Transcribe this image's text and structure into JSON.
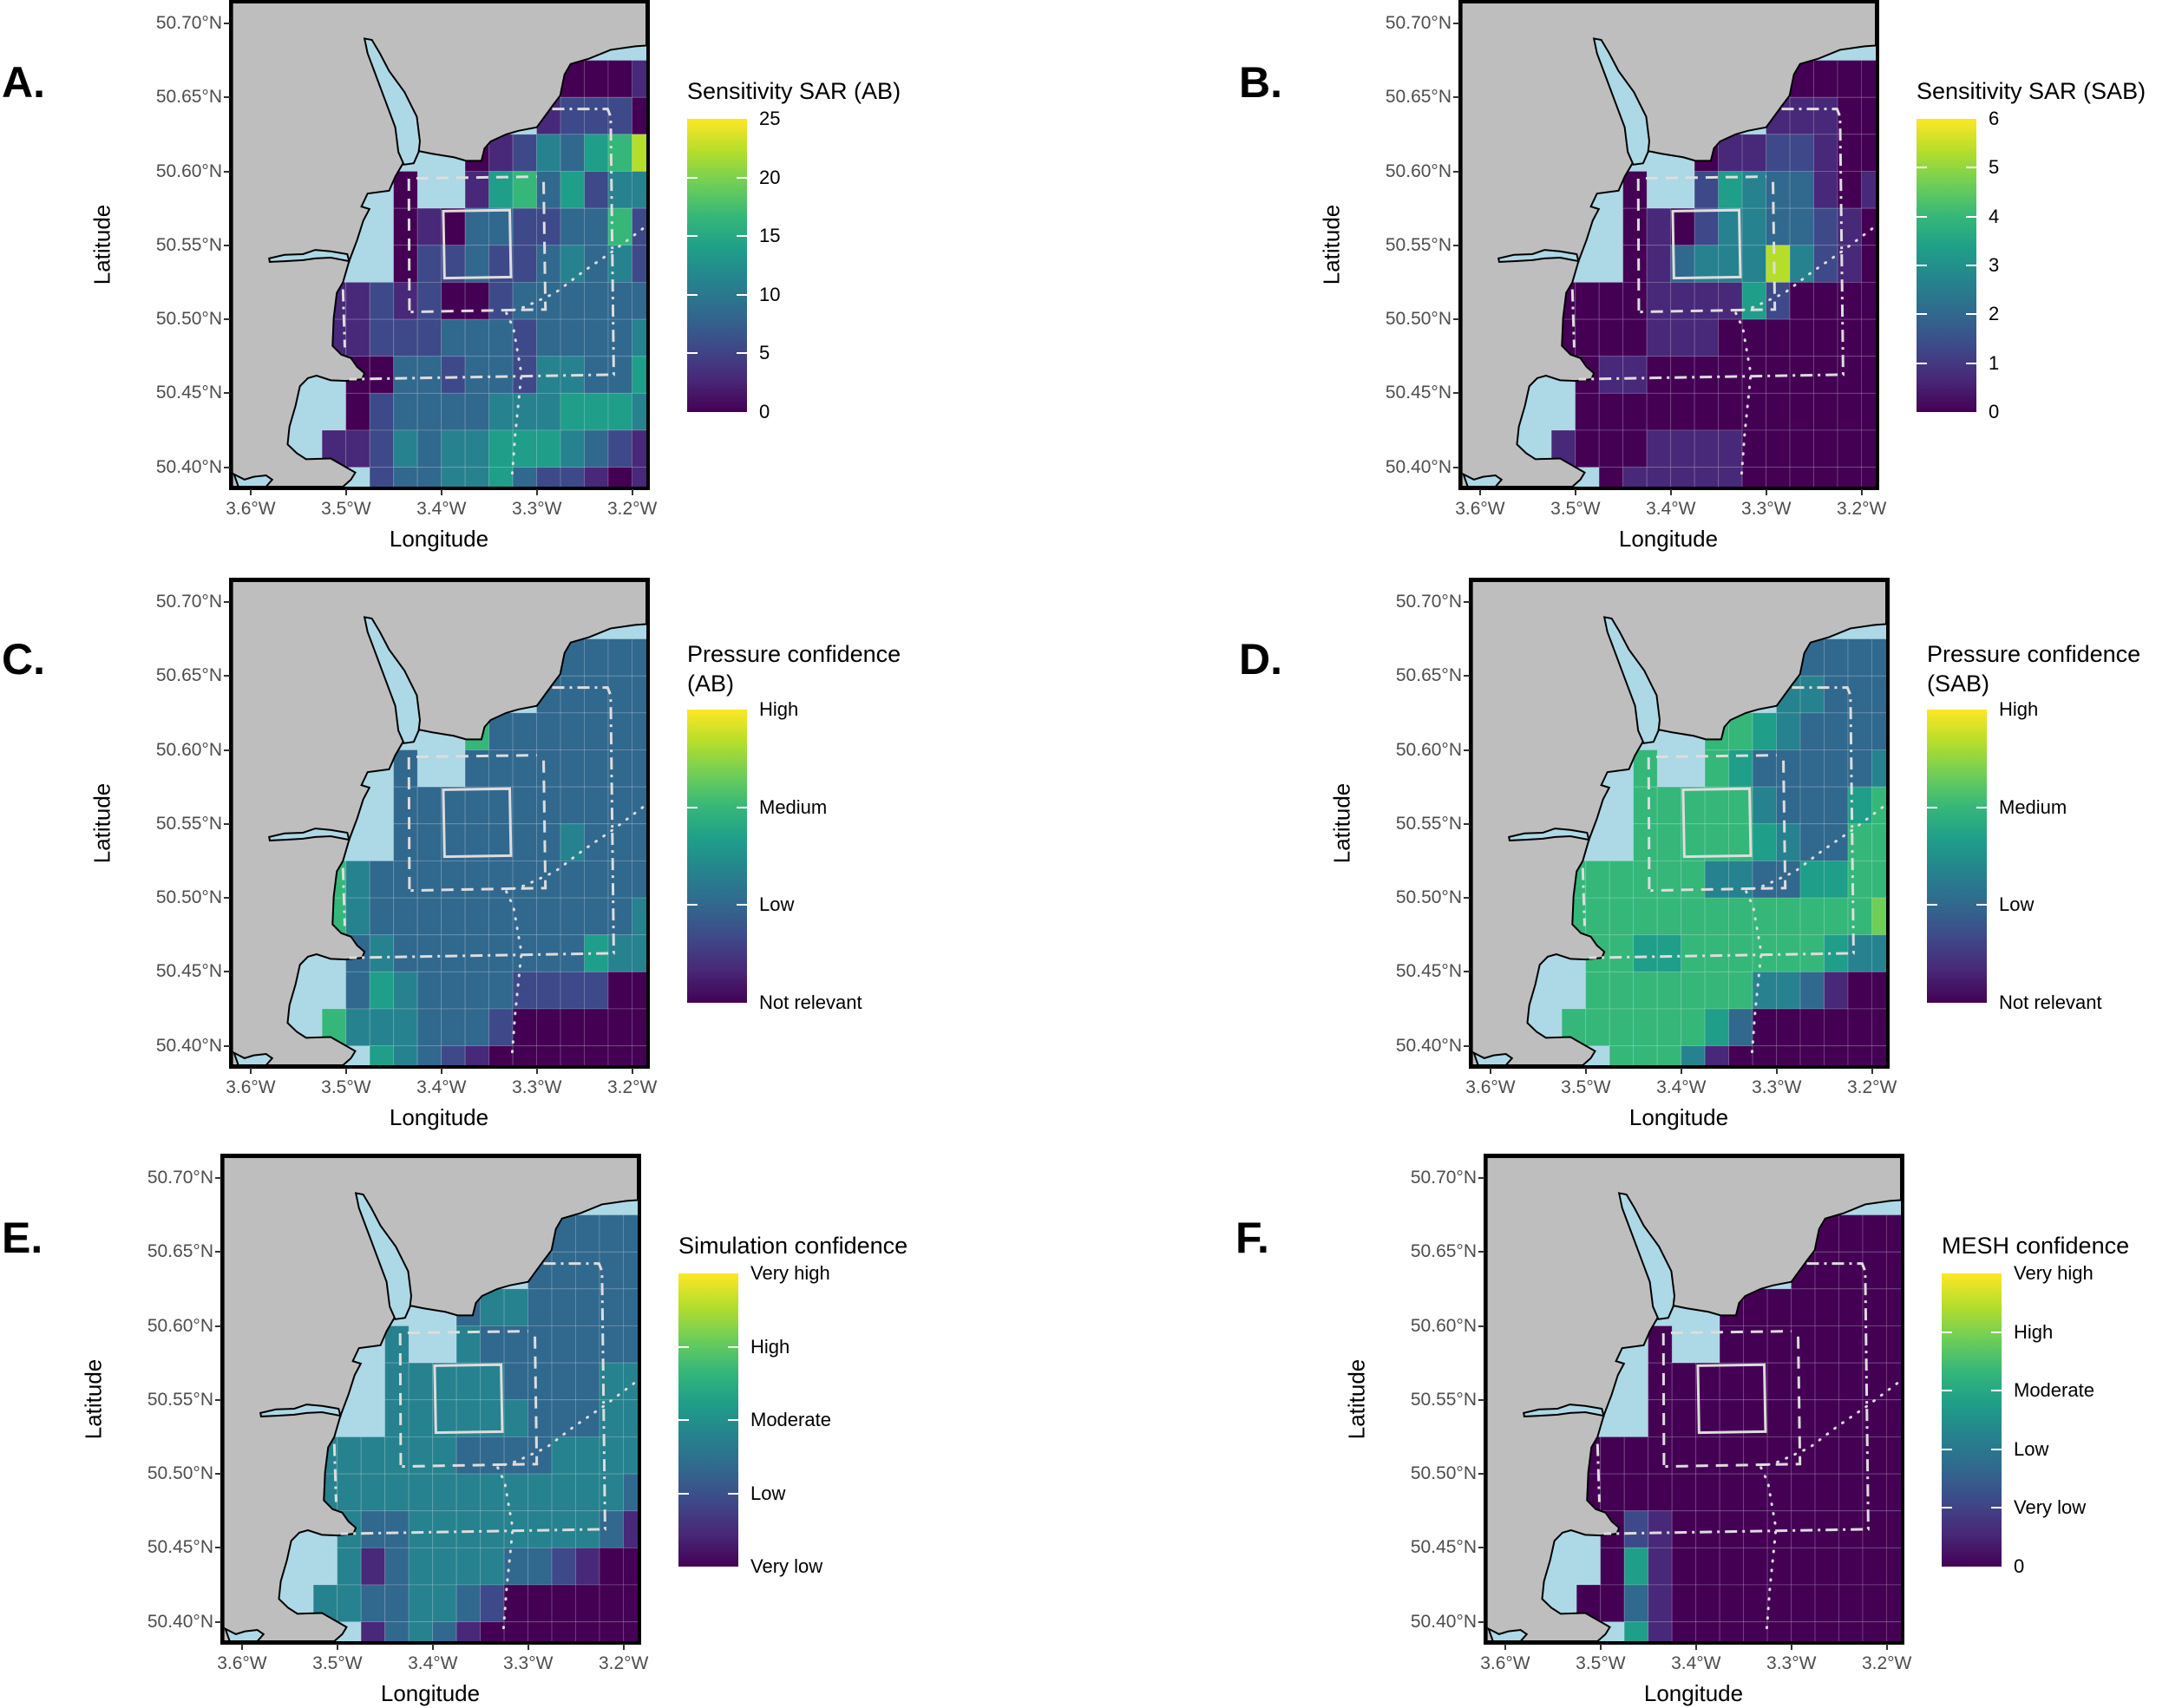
{
  "axes": {
    "x_label": "Longitude",
    "y_label": "Latitude",
    "x_ticks": [
      {
        "value": -3.6,
        "label": "3.6°W"
      },
      {
        "value": -3.5,
        "label": "3.5°W"
      },
      {
        "value": -3.4,
        "label": "3.4°W"
      },
      {
        "value": -3.3,
        "label": "3.3°W"
      },
      {
        "value": -3.2,
        "label": "3.2°W"
      }
    ],
    "y_ticks": [
      {
        "value": 50.7,
        "label": "50.70°N"
      },
      {
        "value": 50.65,
        "label": "50.65°N"
      },
      {
        "value": 50.6,
        "label": "50.60°N"
      },
      {
        "value": 50.55,
        "label": "50.55°N"
      },
      {
        "value": 50.5,
        "label": "50.50°N"
      },
      {
        "value": 50.45,
        "label": "50.45°N"
      },
      {
        "value": 50.4,
        "label": "50.40°N"
      }
    ]
  },
  "colors": {
    "land": "#bebebe",
    "sea": "#add8e6",
    "overlay": "#dddddd",
    "viridis": [
      "#440154",
      "#482878",
      "#3e4989",
      "#31688e",
      "#26828e",
      "#1f9e89",
      "#35b779",
      "#6ece58",
      "#b5de2b",
      "#fde725"
    ]
  },
  "grid_info": {
    "cell_size_deg": 0.025,
    "first_col_lon": -3.525,
    "first_row_top_lat": 50.675,
    "level_scale": "0-9 fraction of colour scale, '.' = no cell"
  },
  "panels": [
    {
      "letter": "A.",
      "legend": {
        "title": [
          "Sensitivity SAR (AB)"
        ],
        "range": [
          0,
          25
        ],
        "ticks": [
          {
            "value": 0,
            "label": "0"
          },
          {
            "value": 5,
            "label": "5"
          },
          {
            "value": 10,
            "label": "10"
          },
          {
            "value": 15,
            "label": "15"
          },
          {
            "value": 20,
            "label": "20"
          },
          {
            "value": 25,
            "label": "25"
          }
        ]
      },
      "grid": [
        "..........0001",
        ".........12220",
        "......01243568",
        "...0..15635244",
        "...01033223362",
        "...02232234342",
        "11212002333333",
        "11222333233334",
        ".0033233244335",
        ".0233334445554",
        "11243445554321",
        "..233445322101"
      ]
    },
    {
      "letter": "B.",
      "legend": {
        "title": [
          "Sensitivity SAR (SAB)"
        ],
        "range": [
          0,
          6
        ],
        "ticks": [
          {
            "value": 0,
            "label": "0"
          },
          {
            "value": 1,
            "label": "1"
          },
          {
            "value": 2,
            "label": "2"
          },
          {
            "value": 3,
            "label": "3"
          },
          {
            "value": 4,
            "label": "4"
          },
          {
            "value": 5,
            "label": "5"
          },
          {
            "value": 6,
            "label": "6"
          }
        ]
      },
      "grid": [
        "..........0000",
        ".........11100",
        "......01122100",
        "...0..25433101",
        "...01024433210",
        "...01344484210",
        "00001111520000",
        "00001110000000",
        ".0110000000000",
        ".0000000000000",
        "10001111000000",
        "..011111000000"
      ]
    },
    {
      "letter": "C.",
      "legend": {
        "title": [
          "Pressure confidence",
          "(AB)"
        ],
        "range": [
          0,
          3
        ],
        "ticks": [
          {
            "value": 0,
            "label": "Not relevant"
          },
          {
            "value": 1,
            "label": "Low"
          },
          {
            "value": 2,
            "label": "Medium"
          },
          {
            "value": 3,
            "label": "High"
          }
        ]
      },
      "grid": [
        "..........3333",
        ".........33333",
        "......63333333",
        "...3..33333333",
        "...33333333333",
        "...33333334333",
        "64333333333333",
        "64333333333334",
        ".3433333333544",
        ".3543333222200",
        "64443332000000",
        "..543210000000"
      ]
    },
    {
      "letter": "D.",
      "legend": {
        "title": [
          "Pressure confidence",
          "(SAB)"
        ],
        "range": [
          0,
          3
        ],
        "ticks": [
          {
            "value": 0,
            "label": "Not relevant"
          },
          {
            "value": 1,
            "label": "Low"
          },
          {
            "value": 2,
            "label": "Medium"
          },
          {
            "value": 3,
            "label": "High"
          }
        ]
      },
      "grid": [
        "..........3333",
        ".........44333",
        "......66543333",
        "...6..65333334",
        "...66666433356",
        "...66666543366",
        "66666644335566",
        "66666666666667",
        ".6655666666544",
        ".6666666443100",
        "66666653000000",
        "..666410000000"
      ]
    },
    {
      "letter": "E.",
      "legend": {
        "title": [
          "Simulation confidence"
        ],
        "range": [
          0,
          4
        ],
        "ticks": [
          {
            "value": 0,
            "label": "Very low"
          },
          {
            "value": 1,
            "label": "Low"
          },
          {
            "value": 2,
            "label": "Moderate"
          },
          {
            "value": 3,
            "label": "High"
          },
          {
            "value": 4,
            "label": "Very high"
          }
        ]
      },
      "grid": [
        "..........3333",
        ".........33333",
        "......34433333",
        "...4..43333333",
        "...44444333344",
        "...44444433344",
        "44444433334444",
        "44444444444443",
        ".4334444444431",
        ".4134444332100",
        "44334432000000",
        "..134310000000"
      ]
    },
    {
      "letter": "F.",
      "legend": {
        "title": [
          "MESH confidence"
        ],
        "range": [
          0,
          5
        ],
        "ticks": [
          {
            "value": 0,
            "label": "0"
          },
          {
            "value": 1,
            "label": "Very low"
          },
          {
            "value": 2,
            "label": "Low"
          },
          {
            "value": 3,
            "label": "Moderate"
          },
          {
            "value": 4,
            "label": "High"
          },
          {
            "value": 5,
            "label": "Very high"
          }
        ]
      },
      "grid": [
        "..........0000",
        ".........00000",
        "......00000000",
        "...0..00000000",
        "...00000000000",
        "...00000000000",
        "00000000000000",
        "00000000000000",
        ".0210000000000",
        ".0510000000000",
        "00310000000000",
        "..510000000000"
      ]
    }
  ]
}
